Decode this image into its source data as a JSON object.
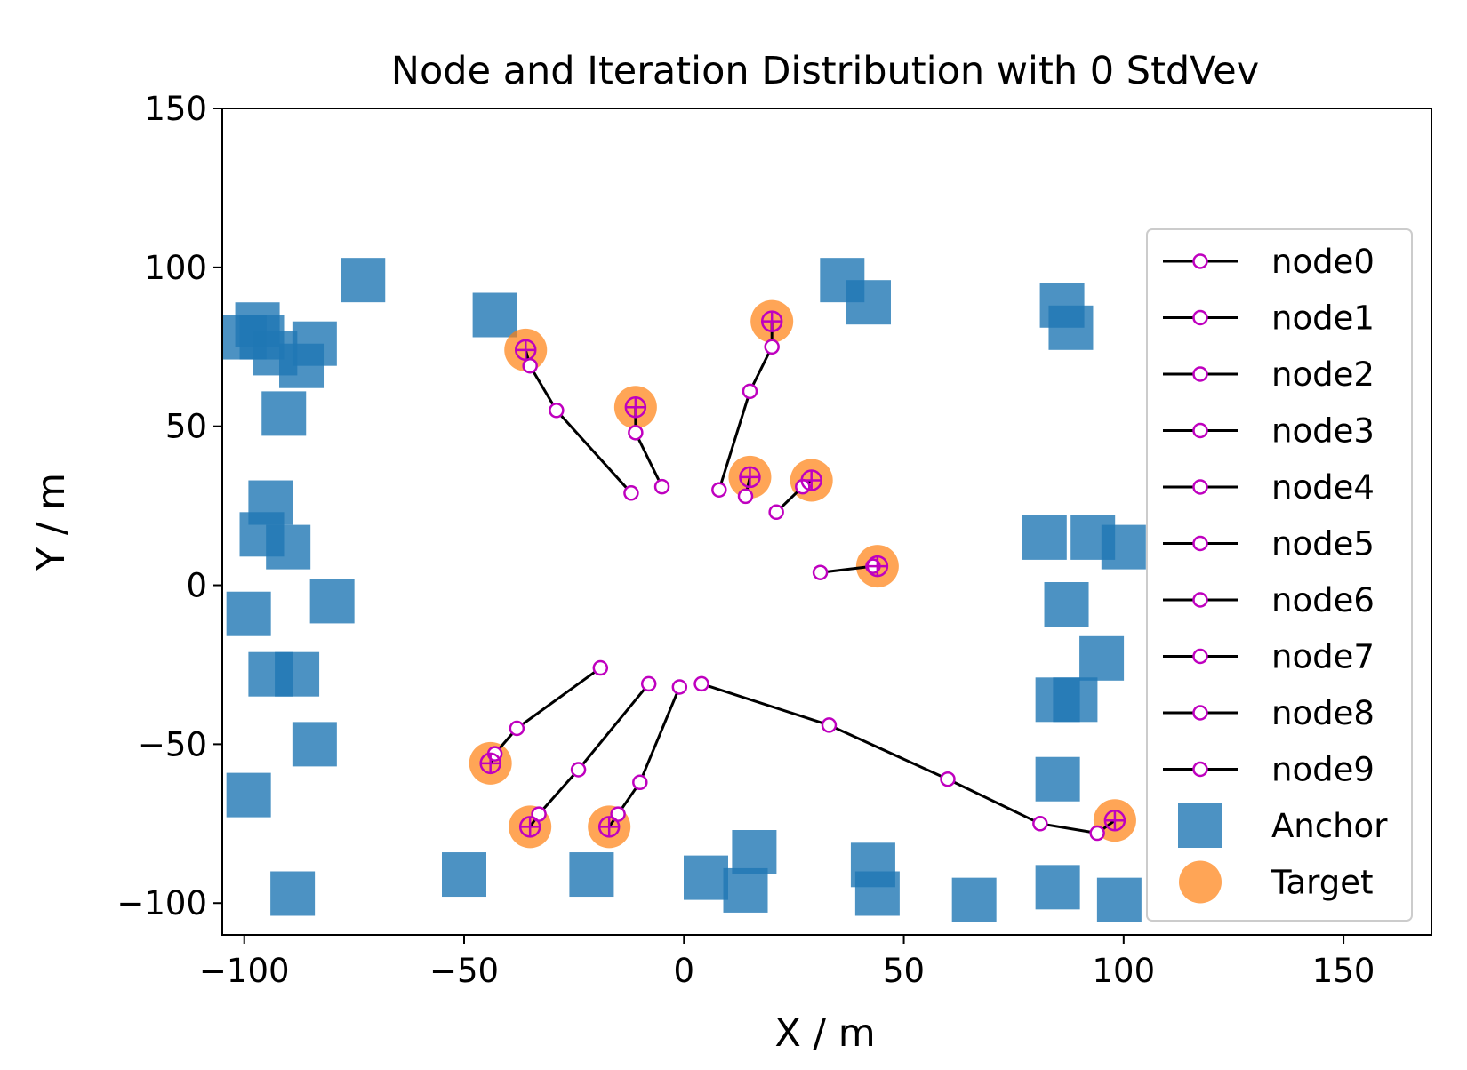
{
  "chart_data": {
    "type": "scatter",
    "title": "Node and Iteration Distribution with 0 StdVev",
    "xlabel": "X / m",
    "ylabel": "Y / m",
    "xlim": [
      -105,
      170
    ],
    "ylim": [
      -110,
      150
    ],
    "xticks": [
      -100,
      -50,
      0,
      50,
      100,
      150
    ],
    "yticks": [
      -100,
      -50,
      0,
      50,
      100,
      150
    ],
    "xtick_labels": [
      "−100",
      "−50",
      "0",
      "50",
      "100",
      "150"
    ],
    "ytick_labels": [
      "−100",
      "−50",
      "0",
      "50",
      "100",
      "150"
    ],
    "grid": false,
    "legend_position": "right",
    "colors": {
      "anchor": "#1f77b4",
      "target": "#ff7f0e",
      "path_line": "#000000",
      "path_marker": "#bf00bf"
    },
    "node_paths": [
      {
        "name": "node0",
        "points": [
          [
            -12,
            29
          ],
          [
            -29,
            55
          ],
          [
            -35,
            69
          ],
          [
            -36,
            74
          ]
        ]
      },
      {
        "name": "node1",
        "points": [
          [
            -5,
            31
          ],
          [
            -11,
            48
          ],
          [
            -11,
            56
          ]
        ]
      },
      {
        "name": "node2",
        "points": [
          [
            8,
            30
          ],
          [
            15,
            61
          ],
          [
            20,
            75
          ],
          [
            20,
            83
          ]
        ]
      },
      {
        "name": "node3",
        "points": [
          [
            14,
            28
          ],
          [
            15,
            34
          ]
        ]
      },
      {
        "name": "node4",
        "points": [
          [
            21,
            23
          ],
          [
            27,
            31
          ],
          [
            29,
            33
          ]
        ]
      },
      {
        "name": "node5",
        "points": [
          [
            31,
            4
          ],
          [
            43,
            6
          ],
          [
            44,
            6
          ]
        ]
      },
      {
        "name": "node6",
        "points": [
          [
            -19,
            -26
          ],
          [
            -38,
            -45
          ],
          [
            -43,
            -53
          ],
          [
            -44,
            -56
          ]
        ]
      },
      {
        "name": "node7",
        "points": [
          [
            -8,
            -31
          ],
          [
            -24,
            -58
          ],
          [
            -33,
            -72
          ],
          [
            -35,
            -76
          ]
        ]
      },
      {
        "name": "node8",
        "points": [
          [
            -1,
            -32
          ],
          [
            -10,
            -62
          ],
          [
            -15,
            -72
          ],
          [
            -17,
            -76
          ]
        ]
      },
      {
        "name": "node9",
        "points": [
          [
            4,
            -31
          ],
          [
            33,
            -44
          ],
          [
            60,
            -61
          ],
          [
            81,
            -75
          ],
          [
            94,
            -78
          ],
          [
            98,
            -74
          ]
        ]
      }
    ],
    "anchors": [
      [
        -73,
        96
      ],
      [
        -97,
        82
      ],
      [
        -96,
        78
      ],
      [
        -100,
        78
      ],
      [
        -93,
        73
      ],
      [
        -84,
        76
      ],
      [
        -87,
        69
      ],
      [
        -91,
        54
      ],
      [
        -94,
        26
      ],
      [
        -96,
        16
      ],
      [
        -90,
        12
      ],
      [
        -80,
        -5
      ],
      [
        -99,
        -9
      ],
      [
        -94,
        -28
      ],
      [
        -88,
        -28
      ],
      [
        -84,
        -50
      ],
      [
        -99,
        -66
      ],
      [
        -89,
        -97
      ],
      [
        -50,
        -91
      ],
      [
        -43,
        85
      ],
      [
        -21,
        -91
      ],
      [
        5,
        -92
      ],
      [
        14,
        -96
      ],
      [
        16,
        -84
      ],
      [
        36,
        96
      ],
      [
        42,
        89
      ],
      [
        43,
        -88
      ],
      [
        44,
        -97
      ],
      [
        66,
        -99
      ],
      [
        85,
        -95
      ],
      [
        86,
        88
      ],
      [
        88,
        81
      ],
      [
        82,
        15
      ],
      [
        93,
        15
      ],
      [
        100,
        12
      ],
      [
        87,
        -6
      ],
      [
        95,
        -23
      ],
      [
        85,
        -36
      ],
      [
        89,
        -36
      ],
      [
        85,
        -61
      ],
      [
        99,
        -99
      ]
    ],
    "targets": [
      [
        -36,
        74
      ],
      [
        -11,
        56
      ],
      [
        20,
        83
      ],
      [
        15,
        34
      ],
      [
        29,
        33
      ],
      [
        44,
        6
      ],
      [
        -44,
        -56
      ],
      [
        -35,
        -76
      ],
      [
        -17,
        -76
      ],
      [
        98,
        -74
      ]
    ],
    "legend": [
      "node0",
      "node1",
      "node2",
      "node3",
      "node4",
      "node5",
      "node6",
      "node7",
      "node8",
      "node9",
      "Anchor",
      "Target"
    ]
  }
}
